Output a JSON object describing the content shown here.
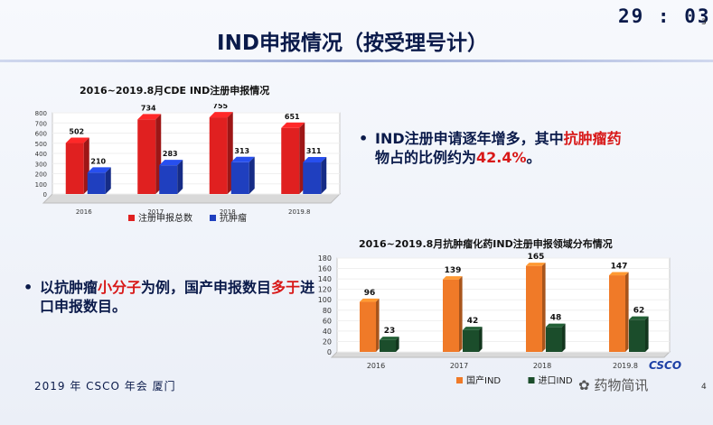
{
  "header": {
    "timer": "29 : 03",
    "page_small": "3",
    "title": "IND申报情况（按受理号计）"
  },
  "footer": {
    "text": "2019 年 CSCO 年会  厦门",
    "page": "4",
    "watermark": "药物简讯",
    "logo": "CSCO"
  },
  "bullets": {
    "b1": {
      "pre": "IND注册申请逐年增多，其中",
      "hl1": "抗肿瘤药",
      "mid": "物占的比例约为",
      "hl2": "42.4%",
      "post": "。"
    },
    "b2": {
      "pre": "以抗肿瘤",
      "hl1": "小分子",
      "mid": "为例，国产申报数目",
      "hl2": "多于",
      "post": "进口申报数目。"
    }
  },
  "colors": {
    "red": "#e02020",
    "blue": "#1f3fbf",
    "orange": "#f07a28",
    "green": "#1b4d2b"
  },
  "chart_data": [
    {
      "type": "bar",
      "title": "2016~2019.8月CDE IND注册申报情况",
      "categories": [
        "2016",
        "2017",
        "2018",
        "2019.8"
      ],
      "series": [
        {
          "name": "注册申报总数",
          "values": [
            502,
            734,
            755,
            651
          ],
          "color": "#e02020"
        },
        {
          "name": "抗肿瘤",
          "values": [
            210,
            283,
            313,
            311
          ],
          "color": "#1f3fbf"
        }
      ],
      "yticks": [
        0,
        100,
        200,
        300,
        400,
        500,
        600,
        700,
        800
      ],
      "ylim": [
        0,
        800
      ],
      "legend": "bottom"
    },
    {
      "type": "bar",
      "title": "2016~2019.8月抗肿瘤化药IND注册申报领域分布情况",
      "categories": [
        "2016",
        "2017",
        "2018",
        "2019.8"
      ],
      "series": [
        {
          "name": "国产IND",
          "values": [
            96,
            139,
            165,
            147
          ],
          "color": "#f07a28"
        },
        {
          "name": "进口IND",
          "values": [
            23,
            42,
            48,
            62
          ],
          "color": "#1b4d2b"
        }
      ],
      "yticks": [
        0,
        20,
        40,
        60,
        80,
        100,
        120,
        140,
        160,
        180
      ],
      "ylim": [
        0,
        180
      ],
      "legend": "bottom"
    }
  ]
}
